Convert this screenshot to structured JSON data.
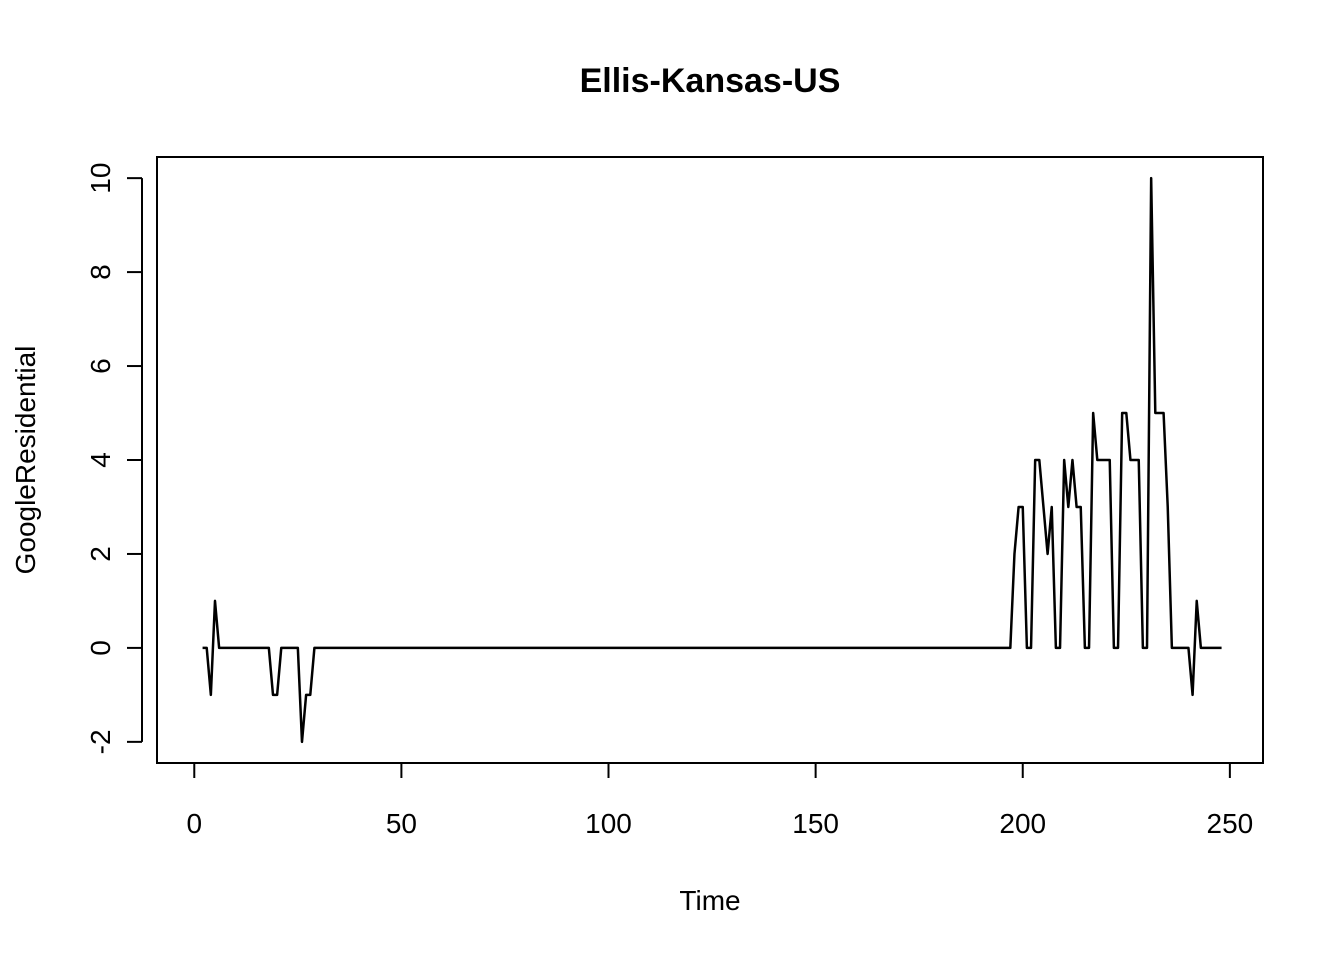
{
  "chart_data": {
    "type": "line",
    "title": "Ellis-Kansas-US",
    "xlabel": "Time",
    "ylabel": "GoogleResidential",
    "xlim": [
      -9,
      258
    ],
    "ylim": [
      -2.45,
      10.45
    ],
    "xticks": [
      0,
      50,
      100,
      150,
      200,
      250
    ],
    "yticks": [
      -2,
      0,
      2,
      4,
      6,
      8,
      10
    ],
    "grid": false,
    "series": [
      {
        "x": [
          2,
          3,
          4,
          5,
          6,
          7,
          8,
          9,
          10,
          11,
          12,
          13,
          14,
          15,
          16,
          17,
          18,
          19,
          20,
          21,
          22,
          23,
          24,
          25,
          26,
          27,
          28,
          29,
          30,
          31,
          32,
          33,
          34,
          35,
          36,
          37,
          38,
          39,
          40,
          41,
          42,
          43,
          44,
          45,
          46,
          47,
          48,
          49,
          50,
          51,
          52,
          53,
          54,
          55,
          56,
          57,
          58,
          59,
          60,
          61,
          62,
          63,
          64,
          65,
          66,
          67,
          68,
          69,
          70,
          71,
          72,
          73,
          74,
          75,
          76,
          77,
          78,
          79,
          80,
          81,
          82,
          83,
          84,
          85,
          86,
          87,
          88,
          89,
          90,
          91,
          92,
          93,
          94,
          95,
          96,
          97,
          98,
          99,
          100,
          101,
          102,
          103,
          104,
          105,
          106,
          107,
          108,
          109,
          110,
          111,
          112,
          113,
          114,
          115,
          116,
          117,
          118,
          119,
          120,
          121,
          122,
          123,
          124,
          125,
          126,
          127,
          128,
          129,
          130,
          131,
          132,
          133,
          134,
          135,
          136,
          137,
          138,
          139,
          140,
          141,
          142,
          143,
          144,
          145,
          146,
          147,
          148,
          149,
          150,
          151,
          152,
          153,
          154,
          155,
          156,
          157,
          158,
          159,
          160,
          161,
          162,
          163,
          164,
          165,
          166,
          167,
          168,
          169,
          170,
          171,
          172,
          173,
          174,
          175,
          176,
          177,
          178,
          179,
          180,
          181,
          182,
          183,
          184,
          185,
          186,
          187,
          188,
          189,
          190,
          191,
          192,
          193,
          194,
          195,
          196,
          197,
          198,
          199,
          200,
          201,
          202,
          203,
          204,
          205,
          206,
          207,
          208,
          209,
          210,
          211,
          212,
          213,
          214,
          215,
          216,
          217,
          218,
          219,
          220,
          221,
          222,
          223,
          224,
          225,
          226,
          227,
          228,
          229,
          230,
          231,
          232,
          233,
          234,
          235,
          236,
          237,
          238,
          239,
          240,
          241,
          242,
          243,
          244,
          245,
          246,
          247,
          248
        ],
        "y": [
          0,
          0,
          -1,
          1,
          0,
          0,
          0,
          0,
          0,
          0,
          0,
          0,
          0,
          0,
          0,
          0,
          0,
          -1,
          -1,
          0,
          0,
          0,
          0,
          0,
          -2,
          -1,
          -1,
          0,
          0,
          0,
          0,
          0,
          0,
          0,
          0,
          0,
          0,
          0,
          0,
          0,
          0,
          0,
          0,
          0,
          0,
          0,
          0,
          0,
          0,
          0,
          0,
          0,
          0,
          0,
          0,
          0,
          0,
          0,
          0,
          0,
          0,
          0,
          0,
          0,
          0,
          0,
          0,
          0,
          0,
          0,
          0,
          0,
          0,
          0,
          0,
          0,
          0,
          0,
          0,
          0,
          0,
          0,
          0,
          0,
          0,
          0,
          0,
          0,
          0,
          0,
          0,
          0,
          0,
          0,
          0,
          0,
          0,
          0,
          0,
          0,
          0,
          0,
          0,
          0,
          0,
          0,
          0,
          0,
          0,
          0,
          0,
          0,
          0,
          0,
          0,
          0,
          0,
          0,
          0,
          0,
          0,
          0,
          0,
          0,
          0,
          0,
          0,
          0,
          0,
          0,
          0,
          0,
          0,
          0,
          0,
          0,
          0,
          0,
          0,
          0,
          0,
          0,
          0,
          0,
          0,
          0,
          0,
          0,
          0,
          0,
          0,
          0,
          0,
          0,
          0,
          0,
          0,
          0,
          0,
          0,
          0,
          0,
          0,
          0,
          0,
          0,
          0,
          0,
          0,
          0,
          0,
          0,
          0,
          0,
          0,
          0,
          0,
          0,
          0,
          0,
          0,
          0,
          0,
          0,
          0,
          0,
          0,
          0,
          0,
          0,
          0,
          0,
          0,
          0,
          0,
          0,
          2,
          3,
          3,
          0,
          0,
          4,
          4,
          3,
          2,
          3,
          0,
          0,
          4,
          3,
          4,
          3,
          3,
          0,
          0,
          5,
          4,
          4,
          4,
          4,
          0,
          0,
          5,
          5,
          4,
          4,
          4,
          0,
          0,
          10,
          5,
          5,
          5,
          3,
          0,
          0,
          0,
          0,
          0,
          -1,
          1,
          0,
          0,
          0,
          0,
          0,
          0
        ]
      }
    ]
  }
}
